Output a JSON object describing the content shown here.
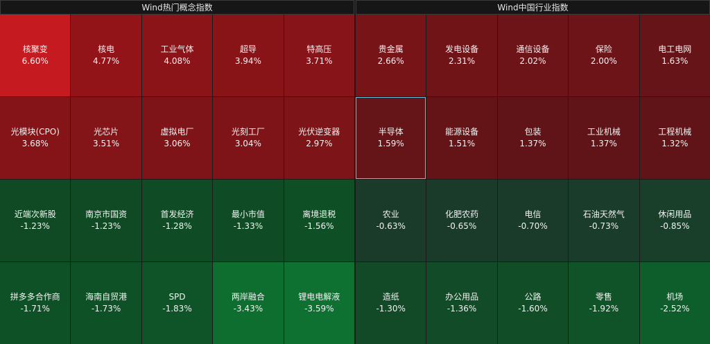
{
  "panels": {
    "left": {
      "title": "Wind热门概念指数",
      "cells": [
        {
          "name": "核聚变",
          "pct": "6.60%",
          "color": "#c51a1f"
        },
        {
          "name": "核电",
          "pct": "4.77%",
          "color": "#921419"
        },
        {
          "name": "工业气体",
          "pct": "4.08%",
          "color": "#8b1418"
        },
        {
          "name": "超导",
          "pct": "3.94%",
          "color": "#881418"
        },
        {
          "name": "特高压",
          "pct": "3.71%",
          "color": "#861418"
        },
        {
          "name": "光模块(CPO)",
          "pct": "3.68%",
          "color": "#841418"
        },
        {
          "name": "光芯片",
          "pct": "3.51%",
          "color": "#831418"
        },
        {
          "name": "虚拟电厂",
          "pct": "3.06%",
          "color": "#7e1418"
        },
        {
          "name": "光刻工厂",
          "pct": "3.04%",
          "color": "#7e1418"
        },
        {
          "name": "光伏逆变器",
          "pct": "2.97%",
          "color": "#7d1418"
        },
        {
          "name": "近端次新股",
          "pct": "-1.23%",
          "color": "#0f4a24"
        },
        {
          "name": "南京市国资",
          "pct": "-1.23%",
          "color": "#0f4a24"
        },
        {
          "name": "首发经济",
          "pct": "-1.28%",
          "color": "#0f4c25"
        },
        {
          "name": "最小市值",
          "pct": "-1.33%",
          "color": "#0f4c25"
        },
        {
          "name": "离境退税",
          "pct": "-1.56%",
          "color": "#0f4f26"
        },
        {
          "name": "拼多多合作商",
          "pct": "-1.71%",
          "color": "#0f5127"
        },
        {
          "name": "海南自贸港",
          "pct": "-1.73%",
          "color": "#0f5127"
        },
        {
          "name": "SPD",
          "pct": "-1.83%",
          "color": "#0f5328"
        },
        {
          "name": "两岸融合",
          "pct": "-3.43%",
          "color": "#0e6e30"
        },
        {
          "name": "锂电电解液",
          "pct": "-3.59%",
          "color": "#0e7031"
        }
      ]
    },
    "right": {
      "title": "Wind中国行业指数",
      "selected_index": 5,
      "cells": [
        {
          "name": "贵金属",
          "pct": "2.66%",
          "color": "#761418"
        },
        {
          "name": "发电设备",
          "pct": "2.31%",
          "color": "#711418"
        },
        {
          "name": "通信设备",
          "pct": "2.02%",
          "color": "#6c1418"
        },
        {
          "name": "保险",
          "pct": "2.00%",
          "color": "#6c1418"
        },
        {
          "name": "电工电网",
          "pct": "1.63%",
          "color": "#661417"
        },
        {
          "name": "半导体",
          "pct": "1.59%",
          "color": "#651417"
        },
        {
          "name": "能源设备",
          "pct": "1.51%",
          "color": "#641417"
        },
        {
          "name": "包装",
          "pct": "1.37%",
          "color": "#611417"
        },
        {
          "name": "工业机械",
          "pct": "1.37%",
          "color": "#611417"
        },
        {
          "name": "工程机械",
          "pct": "1.32%",
          "color": "#601417"
        },
        {
          "name": "农业",
          "pct": "-0.63%",
          "color": "#1a3a2a"
        },
        {
          "name": "化肥农药",
          "pct": "-0.65%",
          "color": "#1a3a2a"
        },
        {
          "name": "电信",
          "pct": "-0.70%",
          "color": "#1a3b2a"
        },
        {
          "name": "石油天然气",
          "pct": "-0.73%",
          "color": "#1a3c2a"
        },
        {
          "name": "休闲用品",
          "pct": "-0.85%",
          "color": "#193e2a"
        },
        {
          "name": "造纸",
          "pct": "-1.30%",
          "color": "#124a28"
        },
        {
          "name": "办公用品",
          "pct": "-1.36%",
          "color": "#124b28"
        },
        {
          "name": "公路",
          "pct": "-1.60%",
          "color": "#114e28"
        },
        {
          "name": "零售",
          "pct": "-1.92%",
          "color": "#105328"
        },
        {
          "name": "机场",
          "pct": "-2.52%",
          "color": "#0e5e2b"
        }
      ]
    }
  }
}
